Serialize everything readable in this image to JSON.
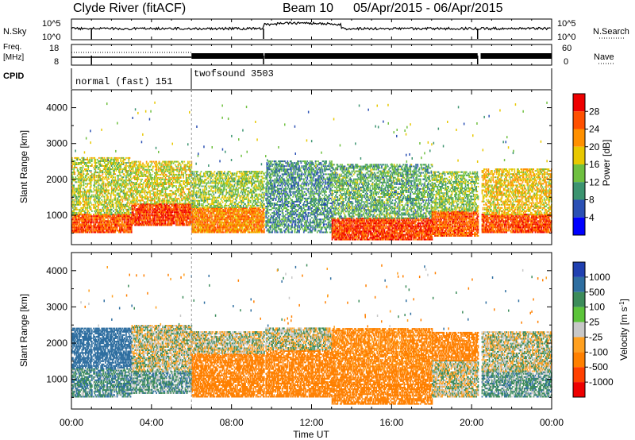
{
  "header": {
    "title": "Clyde River (fitACF)",
    "beam": "Beam 10",
    "date_range": "05/Apr/2015 - 06/Apr/2015"
  },
  "strip1": {
    "left_label": "N.Sky",
    "right_label": "N.Search",
    "left_ticks": [
      "10^5",
      "10^0"
    ],
    "right_ticks": [
      "10^5",
      "10^0"
    ]
  },
  "strip2": {
    "left_label_line1": "Freq.",
    "left_label_line2": "[MHz]",
    "left_ticks": [
      "18",
      "8"
    ],
    "right_label": "Nave",
    "right_ticks": [
      "60",
      "0"
    ]
  },
  "cpid": {
    "label": "CPID",
    "segments": [
      {
        "name": "normal (fast) 151",
        "start_hour": 0,
        "end_hour": 6
      },
      {
        "name": "twofsound 3503",
        "start_hour": 6,
        "end_hour": 24
      }
    ]
  },
  "power_panel": {
    "ylabel": "Slant Range [km]",
    "colorbar_label": "Power [dB]",
    "colorbar_ticks": [
      "4",
      "8",
      "12",
      "16",
      "20",
      "24",
      "28"
    ],
    "colors": [
      "#0000ff",
      "#2b50b4",
      "#3c9470",
      "#6fc040",
      "#e8c800",
      "#ff9000",
      "#ff5000",
      "#ee0000"
    ]
  },
  "velocity_panel": {
    "ylabel": "Slant Range [km]",
    "colorbar_label": "Velocity [m s^-1]",
    "colorbar_ticks": [
      "1000",
      "500",
      "100",
      "25",
      "-25",
      "-100",
      "-500",
      "-1000"
    ],
    "colors": [
      "#2040b0",
      "#2e6ea0",
      "#3c8c5a",
      "#5cc43a",
      "#c8c8c8",
      "#ffa020",
      "#ff8000",
      "#ff4000",
      "#ee0000"
    ]
  },
  "x_axis": {
    "label": "Time UT",
    "ticks": [
      "00:00",
      "04:00",
      "08:00",
      "12:00",
      "16:00",
      "20:00",
      "00:00"
    ]
  },
  "chart_data": {
    "type": "heatmap",
    "x_range_hours": [
      0,
      24
    ],
    "y_range_km": [
      180,
      4500
    ],
    "y_ticks": [
      1000,
      2000,
      3000,
      4000
    ],
    "data_gaps_hours": [
      [
        1.0,
        1.05
      ],
      [
        9.6,
        9.65
      ],
      [
        20.3,
        20.45
      ]
    ],
    "power_scatter_regions": [
      {
        "start_hour": 0.0,
        "end_hour": 3.0,
        "range_km": [
          500,
          1000
        ],
        "level_db": 26
      },
      {
        "start_hour": 0.0,
        "end_hour": 3.0,
        "range_km": [
          1000,
          2600
        ],
        "level_db": 16
      },
      {
        "start_hour": 3.0,
        "end_hour": 6.0,
        "range_km": [
          700,
          1300
        ],
        "level_db": 27
      },
      {
        "start_hour": 3.0,
        "end_hour": 6.0,
        "range_km": [
          1300,
          2500
        ],
        "level_db": 17
      },
      {
        "start_hour": 6.0,
        "end_hour": 9.6,
        "range_km": [
          500,
          1200
        ],
        "level_db": 23
      },
      {
        "start_hour": 6.0,
        "end_hour": 9.6,
        "range_km": [
          1200,
          2200
        ],
        "level_db": 15
      },
      {
        "start_hour": 9.6,
        "end_hour": 13.0,
        "range_km": [
          500,
          2500
        ],
        "level_db": 10
      },
      {
        "start_hour": 13.0,
        "end_hour": 18.0,
        "range_km": [
          300,
          900
        ],
        "level_db": 27
      },
      {
        "start_hour": 13.0,
        "end_hour": 18.0,
        "range_km": [
          900,
          2400
        ],
        "level_db": 12
      },
      {
        "start_hour": 18.0,
        "end_hour": 20.3,
        "range_km": [
          400,
          1100
        ],
        "level_db": 25
      },
      {
        "start_hour": 18.0,
        "end_hour": 20.3,
        "range_km": [
          1100,
          2200
        ],
        "level_db": 14
      },
      {
        "start_hour": 20.45,
        "end_hour": 24.0,
        "range_km": [
          500,
          1000
        ],
        "level_db": 26
      },
      {
        "start_hour": 20.45,
        "end_hour": 24.0,
        "range_km": [
          1000,
          2300
        ],
        "level_db": 19
      }
    ],
    "velocity_scatter_regions": [
      {
        "start_hour": 0.0,
        "end_hour": 3.0,
        "range_km": [
          500,
          1300
        ],
        "velocity_ms": 80
      },
      {
        "start_hour": 0.0,
        "end_hour": 3.0,
        "range_km": [
          1300,
          2400
        ],
        "velocity_ms": 300
      },
      {
        "start_hour": 3.0,
        "end_hour": 6.0,
        "range_km": [
          600,
          1200
        ],
        "velocity_ms": 60
      },
      {
        "start_hour": 3.0,
        "end_hour": 6.0,
        "range_km": [
          1200,
          2500
        ],
        "velocity_ms": 0
      },
      {
        "start_hour": 6.0,
        "end_hour": 9.6,
        "range_km": [
          500,
          1700
        ],
        "velocity_ms": -200
      },
      {
        "start_hour": 6.0,
        "end_hour": 9.6,
        "range_km": [
          1700,
          2300
        ],
        "velocity_ms": 0
      },
      {
        "start_hour": 9.6,
        "end_hour": 13.0,
        "range_km": [
          500,
          1800
        ],
        "velocity_ms": -200
      },
      {
        "start_hour": 9.6,
        "end_hour": 13.0,
        "range_km": [
          1800,
          2400
        ],
        "velocity_ms": 0
      },
      {
        "start_hour": 13.0,
        "end_hour": 18.0,
        "range_km": [
          300,
          1200
        ],
        "velocity_ms": -250
      },
      {
        "start_hour": 13.0,
        "end_hour": 18.0,
        "range_km": [
          1200,
          2400
        ],
        "velocity_ms": -150
      },
      {
        "start_hour": 18.0,
        "end_hour": 20.3,
        "range_km": [
          500,
          1500
        ],
        "velocity_ms": 0
      },
      {
        "start_hour": 18.0,
        "end_hour": 20.3,
        "range_km": [
          1500,
          2300
        ],
        "velocity_ms": -200
      },
      {
        "start_hour": 20.45,
        "end_hour": 24.0,
        "range_km": [
          500,
          1200
        ],
        "velocity_ms": 60
      },
      {
        "start_hour": 20.45,
        "end_hour": 24.0,
        "range_km": [
          1200,
          2300
        ],
        "velocity_ms": 0
      }
    ]
  }
}
